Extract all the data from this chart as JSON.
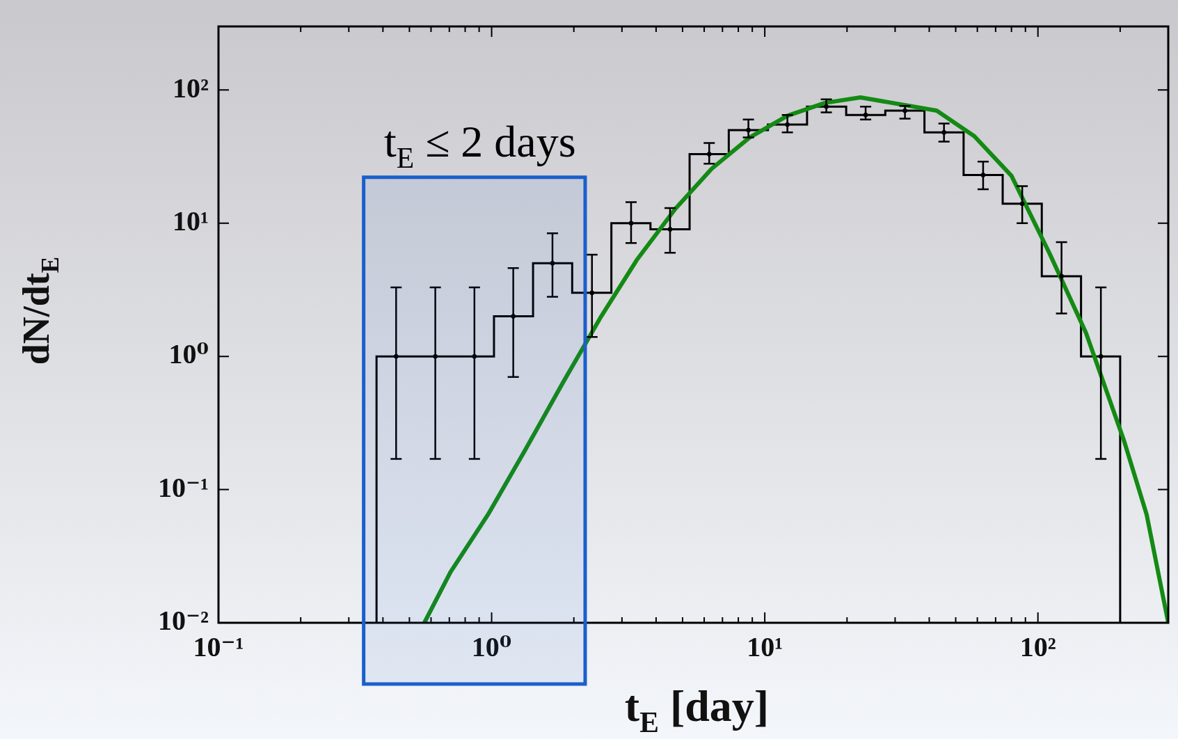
{
  "chart_data": {
    "type": "histogram",
    "xlabel": "t$_{E}$ [day]",
    "ylabel": "dN/dt$_{E}$",
    "log": "xy",
    "bins": [
      0.379,
      0.527,
      0.733,
      1.02,
      1.418,
      1.972,
      2.744,
      3.815,
      5.306,
      7.382,
      10.27,
      14.28,
      19.86,
      27.62,
      38.42,
      53.44,
      74.3,
      103.3,
      143.8,
      200
    ],
    "values": [
      1,
      1,
      1,
      2,
      5,
      3,
      10,
      9,
      33,
      50,
      55,
      75,
      65,
      70,
      48,
      23,
      14,
      4,
      1
    ],
    "series": [
      {
        "type": "scatter",
        "marker": "circle",
        "color": "#000000",
        "x": [
          0.447,
          0.622,
          0.865,
          1.2,
          1.67,
          2.33,
          3.24,
          4.5,
          6.26,
          8.71,
          12.1,
          16.8,
          23.4,
          32.6,
          45.3,
          63,
          87.6,
          122,
          170
        ],
        "values": [
          1,
          1,
          1,
          2,
          5,
          3,
          10,
          9,
          33,
          50,
          55,
          75,
          65,
          70,
          48,
          23,
          14,
          4,
          1
        ],
        "errors": [
          [
            0.17,
            3.3
          ],
          [
            0.17,
            3.3
          ],
          [
            0.17,
            3.3
          ],
          [
            0.7,
            4.6
          ],
          [
            2.8,
            8.4
          ],
          [
            1.4,
            5.8
          ],
          [
            7.1,
            14.4
          ],
          [
            6.0,
            13
          ],
          [
            28,
            40
          ],
          [
            44,
            60
          ],
          [
            48,
            65
          ],
          [
            68,
            85
          ],
          [
            60,
            75
          ],
          [
            61,
            76
          ],
          [
            41,
            56
          ],
          [
            18,
            29
          ],
          [
            10,
            19
          ],
          [
            2.1,
            7.2
          ],
          [
            0.17,
            3.3
          ]
        ]
      },
      {
        "type": "line",
        "color": "#148a14",
        "x": [
          0.567,
          0.707,
          0.97,
          1.33,
          1.82,
          2.5,
          3.4,
          4.7,
          6.4,
          8.8,
          12.1,
          16.6,
          22.4,
          42.6,
          58.5,
          80,
          110,
          150,
          207,
          250,
          300
        ],
        "values": [
          0.01,
          0.024,
          0.065,
          0.2,
          0.63,
          1.95,
          5.3,
          12.8,
          25.7,
          44,
          64,
          80,
          88,
          70,
          45,
          22.7,
          6.0,
          1.5,
          0.23,
          0.065,
          0.01
        ]
      }
    ],
    "bands": [
      {
        "axis": "x",
        "from": 0.34,
        "to": 2.2,
        "label": "t$_{E}$ ≤ 2 days",
        "color": "#1a5fcc"
      }
    ],
    "xlim": [
      0.1,
      300
    ],
    "ylim": [
      0.01,
      300
    ],
    "xticks": [
      {
        "value": 0.1,
        "label": "10⁻¹"
      },
      {
        "value": 0.2,
        "label": null
      },
      {
        "value": 0.3,
        "label": null
      },
      {
        "value": 0.4,
        "label": null
      },
      {
        "value": 0.5,
        "label": null
      },
      {
        "value": 0.6,
        "label": null
      },
      {
        "value": 0.7,
        "label": null
      },
      {
        "value": 0.8,
        "label": null
      },
      {
        "value": 0.9,
        "label": null
      },
      {
        "value": 1,
        "label": "10⁰"
      },
      {
        "value": 2,
        "label": null
      },
      {
        "value": 3,
        "label": null
      },
      {
        "value": 4,
        "label": null
      },
      {
        "value": 5,
        "label": null
      },
      {
        "value": 6,
        "label": null
      },
      {
        "value": 7,
        "label": null
      },
      {
        "value": 8,
        "label": null
      },
      {
        "value": 9,
        "label": null
      },
      {
        "value": 10,
        "label": "10¹"
      },
      {
        "value": 20,
        "label": null
      },
      {
        "value": 30,
        "label": null
      },
      {
        "value": 40,
        "label": null
      },
      {
        "value": 50,
        "label": null
      },
      {
        "value": 60,
        "label": null
      },
      {
        "value": 70,
        "label": null
      },
      {
        "value": 80,
        "label": null
      },
      {
        "value": 90,
        "label": null
      },
      {
        "value": 100,
        "label": "10²"
      },
      {
        "value": 200,
        "label": null
      },
      {
        "value": 300,
        "label": null
      }
    ],
    "yticks": [
      {
        "value": 0.01,
        "label": "10⁻²"
      },
      {
        "value": 0.1,
        "label": "10⁻¹"
      },
      {
        "value": 1,
        "label": "10⁰"
      },
      {
        "value": 10,
        "label": "10¹"
      },
      {
        "value": 100,
        "label": "10²"
      }
    ]
  }
}
